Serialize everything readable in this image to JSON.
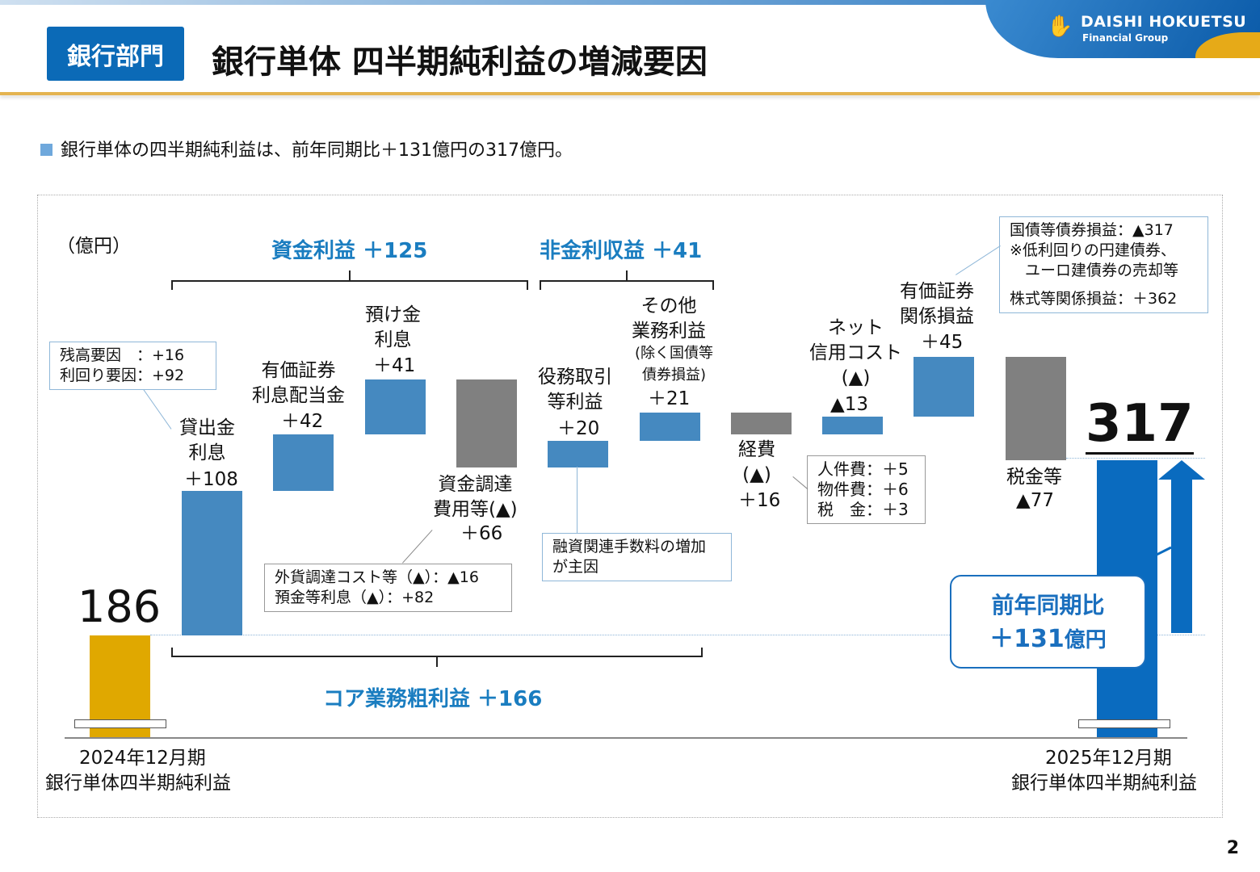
{
  "header": {
    "badge": "銀行部門",
    "title": "銀行単体 四半期純利益の増減要因",
    "logo": "DAISHI HOKUETSU",
    "logo_sub": "Financial Group"
  },
  "lead": "銀行単体の四半期純利益は、前年同期比＋131億円の317億円。",
  "page_number": "2",
  "colors": {
    "increase": "#4589c0",
    "decrease": "#808080",
    "start": "#e0a800",
    "end": "#0a6bbf",
    "accent": "#1a7dc0"
  },
  "chart_data": {
    "type": "waterfall",
    "unit": "（億円）",
    "start": {
      "label1": "2024年12月期",
      "label2": "銀行単体四半期純利益",
      "value": 186,
      "value_label": "186"
    },
    "end": {
      "label1": "2025年12月期",
      "label2": "銀行単体四半期純利益",
      "value": 317,
      "value_label": "317"
    },
    "steps": [
      {
        "label": "貸出金\n利息",
        "value": 108,
        "value_label": "＋108",
        "kind": "increase"
      },
      {
        "label": "有価証券\n利息配当金",
        "value": 42,
        "value_label": "＋42",
        "kind": "increase"
      },
      {
        "label": "預け金\n利息",
        "value": 41,
        "value_label": "＋41",
        "kind": "increase"
      },
      {
        "label": "資金調達\n費用等(▲)",
        "value": -66,
        "value_label": "＋66",
        "kind": "decrease"
      },
      {
        "label": "役務取引\n等利益",
        "value": 20,
        "value_label": "＋20",
        "kind": "increase"
      },
      {
        "label": "その他\n業務利益",
        "sub": "(除く国債等\n債券損益)",
        "value": 21,
        "value_label": "＋21",
        "kind": "increase"
      },
      {
        "label": "経費\n(▲)",
        "value": -16,
        "value_label": "＋16",
        "kind": "decrease"
      },
      {
        "label": "ネット\n信用コスト\n(▲)",
        "value": 13,
        "value_label": "▲13",
        "kind": "increase"
      },
      {
        "label": "有価証券\n関係損益",
        "value": 45,
        "value_label": "＋45",
        "kind": "increase"
      },
      {
        "label": "税金等",
        "value": -77,
        "value_label": "▲77",
        "kind": "decrease"
      }
    ],
    "groups": [
      {
        "label": "資金利益 ＋125"
      },
      {
        "label": "非金利収益 ＋41"
      },
      {
        "label": "コア業務粗利益 ＋166"
      }
    ],
    "callouts": {
      "loan": [
        "残高要因　：+16",
        "利回り要因：+92"
      ],
      "funding": [
        "外貨調達コスト等（▲）：▲16",
        "預金等利息（▲）：+82"
      ],
      "fees": [
        "融資関連手数料の増加",
        "が主因"
      ],
      "expenses": [
        "人件費：＋5",
        "物件費：＋6",
        "税　金：＋3"
      ],
      "securities": [
        "国債等債券損益：▲317",
        "※低利回りの円建債券、",
        "　ユーロ建債券の売却等",
        "株式等関係損益：＋362"
      ]
    },
    "yoy": {
      "label": "前年同期比",
      "value": "＋131",
      "unit": "億円"
    }
  }
}
